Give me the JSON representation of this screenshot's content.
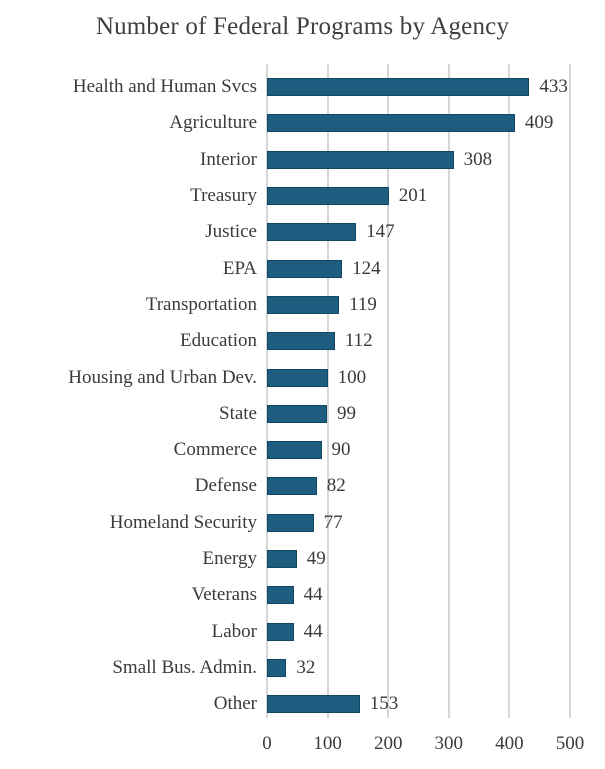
{
  "chart_data": {
    "type": "bar",
    "orientation": "horizontal",
    "title": "Number of Federal Programs by Agency",
    "categories": [
      "Health and Human Svcs",
      "Agriculture",
      "Interior",
      "Treasury",
      "Justice",
      "EPA",
      "Transportation",
      "Education",
      "Housing and Urban Dev.",
      "State",
      "Commerce",
      "Defense",
      "Homeland Security",
      "Energy",
      "Veterans",
      "Labor",
      "Small Bus. Admin.",
      "Other"
    ],
    "values": [
      433,
      409,
      308,
      201,
      147,
      124,
      119,
      112,
      100,
      99,
      90,
      82,
      77,
      49,
      44,
      44,
      32,
      153
    ],
    "value_labels": [
      "433",
      "409",
      "308",
      "201",
      "147",
      "124",
      "119",
      "112",
      "100",
      "99",
      "90",
      "82",
      "77",
      "49",
      "44",
      "44",
      "32",
      "153"
    ],
    "xlabel": "",
    "ylabel": "",
    "xlim": [
      0,
      500
    ],
    "xticks": [
      0,
      100,
      200,
      300,
      400,
      500
    ],
    "xtick_labels": [
      "0",
      "100",
      "200",
      "300",
      "400",
      "500"
    ],
    "grid": true,
    "gridlines": "vertical",
    "legend": "none",
    "colors": {
      "bar_fill": "#1d5d80",
      "bar_border": "#134763",
      "gridline": "#d6d6d6",
      "text": "#3b3b3b"
    }
  }
}
